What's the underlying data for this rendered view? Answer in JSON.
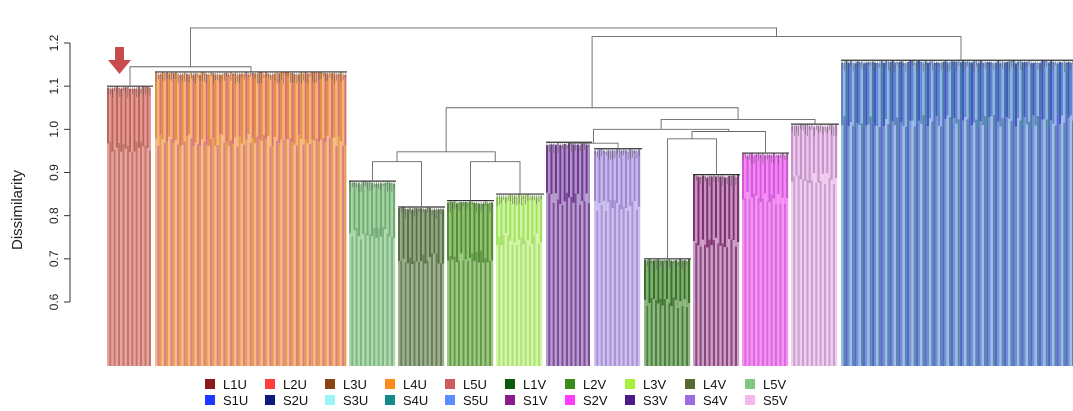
{
  "chart_data": {
    "type": "dendrogram",
    "ylabel": "Dissimilarity",
    "ylim": [
      0.6,
      1.2
    ],
    "yticks": [
      "0.6",
      "0.7",
      "0.8",
      "0.9",
      "1.0",
      "1.1",
      "1.2"
    ],
    "annotation": "red-down-arrow",
    "clusters": [
      {
        "top": 1.1,
        "mid": 0.96,
        "base": 0.935,
        "colors": [
          "#b85f52",
          "#e8908a"
        ],
        "width": 46
      },
      {
        "top": 1.133,
        "mid": 0.975,
        "base": 0.93,
        "colors": [
          "#e28a3a",
          "#f6b06e",
          "#d76b6b"
        ],
        "width": 192
      },
      {
        "top": 0.88,
        "mid": 0.76,
        "base": 0.745,
        "colors": [
          "#6aa86e",
          "#9fd39c"
        ],
        "width": 47
      },
      {
        "top": 0.82,
        "mid": 0.7,
        "base": 0.685,
        "colors": [
          "#4f6b3c",
          "#8ea27c"
        ],
        "width": 47
      },
      {
        "top": 0.835,
        "mid": 0.705,
        "base": 0.69,
        "colors": [
          "#4a8a2a",
          "#8bbf68"
        ],
        "width": 47
      },
      {
        "top": 0.85,
        "mid": 0.745,
        "base": 0.725,
        "colors": [
          "#9de05a",
          "#ccf39b"
        ],
        "width": 48
      },
      {
        "top": 0.97,
        "mid": 0.84,
        "base": 0.82,
        "colors": [
          "#6a2d8a",
          "#a88cc6"
        ],
        "width": 46
      },
      {
        "top": 0.955,
        "mid": 0.825,
        "base": 0.81,
        "colors": [
          "#9a7fd1",
          "#c5b5ea"
        ],
        "width": 48
      },
      {
        "top": 0.7,
        "mid": 0.6,
        "base": 0.58,
        "colors": [
          "#2e6b1f",
          "#7aaa6b"
        ],
        "width": 47
      },
      {
        "top": 0.895,
        "mid": 0.74,
        "base": 0.72,
        "colors": [
          "#7a2668",
          "#c48fc0"
        ],
        "width": 47
      },
      {
        "top": 0.945,
        "mid": 0.84,
        "base": 0.82,
        "colors": [
          "#d24fd8",
          "#f57ef5"
        ],
        "width": 47
      },
      {
        "top": 1.012,
        "mid": 0.885,
        "base": 0.87,
        "colors": [
          "#c08fc7",
          "#f0c4ec"
        ],
        "width": 48
      },
      {
        "top": 1.16,
        "mid": 1.02,
        "base": 1.01,
        "colors": [
          "#5a7fc4",
          "#8fb0ec",
          "#3a78a0",
          "#3a4fc0"
        ],
        "width": 240
      }
    ],
    "merges": [
      {
        "a": 0,
        "b": 1,
        "h": 1.145
      },
      {
        "a": 2,
        "b": 3,
        "h": 0.925
      },
      {
        "a": 4,
        "b": 5,
        "h": 0.925
      },
      {
        "a": "m1",
        "b": "m2",
        "h": 0.948
      },
      {
        "a": 6,
        "b": 7,
        "h": 0.968
      },
      {
        "a": 8,
        "b": 9,
        "h": 0.978
      },
      {
        "a": 10,
        "b": "m5",
        "h": 0.995
      },
      {
        "a": "m6",
        "b": "m4",
        "h": 1.0
      },
      {
        "a": "m7",
        "b": 11,
        "h": 1.023
      },
      {
        "a": "m3",
        "b": "m8",
        "h": 1.05
      },
      {
        "a": "m9",
        "b": 12,
        "h": 1.215
      },
      {
        "a": "m0",
        "b": "m10",
        "h": 1.235
      }
    ],
    "legend": [
      [
        {
          "label": "L1U",
          "color": "#8b1a1a"
        },
        {
          "label": "L2U",
          "color": "#ff3b3b"
        },
        {
          "label": "L3U",
          "color": "#8b4513"
        },
        {
          "label": "L4U",
          "color": "#ff8c1a"
        },
        {
          "label": "L5U",
          "color": "#cd5c5c"
        },
        {
          "label": "L1V",
          "color": "#0b5a0b"
        },
        {
          "label": "L2V",
          "color": "#3a8c1a"
        },
        {
          "label": "L3V",
          "color": "#a6f03c"
        },
        {
          "label": "L4V",
          "color": "#556b2f"
        },
        {
          "label": "L5V",
          "color": "#7fc97f"
        }
      ],
      [
        {
          "label": "S1U",
          "color": "#1a3bff"
        },
        {
          "label": "S2U",
          "color": "#0a1a7a"
        },
        {
          "label": "S3U",
          "color": "#9ef5f5"
        },
        {
          "label": "S4U",
          "color": "#138a8a"
        },
        {
          "label": "S5U",
          "color": "#5b8cff"
        },
        {
          "label": "S1V",
          "color": "#8b1a8b"
        },
        {
          "label": "S2V",
          "color": "#ff3bff"
        },
        {
          "label": "S3V",
          "color": "#4b1a8b"
        },
        {
          "label": "S4V",
          "color": "#9b6bdf"
        },
        {
          "label": "S5V",
          "color": "#f5b5ef"
        }
      ]
    ]
  }
}
